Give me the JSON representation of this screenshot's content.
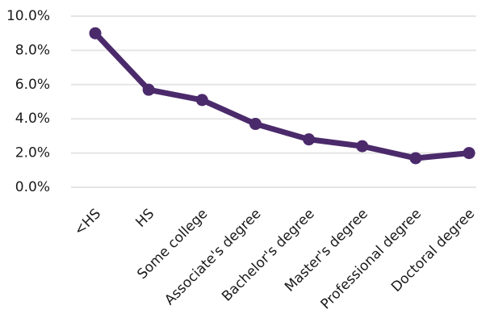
{
  "chart_data": {
    "type": "line",
    "title": "",
    "xlabel": "",
    "ylabel": "",
    "categories": [
      "<HS",
      "HS",
      "Some college",
      "Associate's degree",
      "Bachelor's degree",
      "Master's degree",
      "Professional degree",
      "Doctoral degree"
    ],
    "series": [
      {
        "values": [
          9.0,
          5.7,
          5.1,
          3.7,
          2.8,
          2.4,
          1.7,
          2.0
        ]
      }
    ],
    "ylim": [
      0,
      10
    ],
    "yticks": [
      "0.0%",
      "2.0%",
      "4.0%",
      "6.0%",
      "8.0%",
      "10.0%"
    ],
    "ytick_values": [
      0,
      2,
      4,
      6,
      8,
      10
    ],
    "grid": true,
    "legend": "none",
    "colors": {
      "series": "#4b2a6b",
      "grid": "#e5e5e5"
    }
  }
}
